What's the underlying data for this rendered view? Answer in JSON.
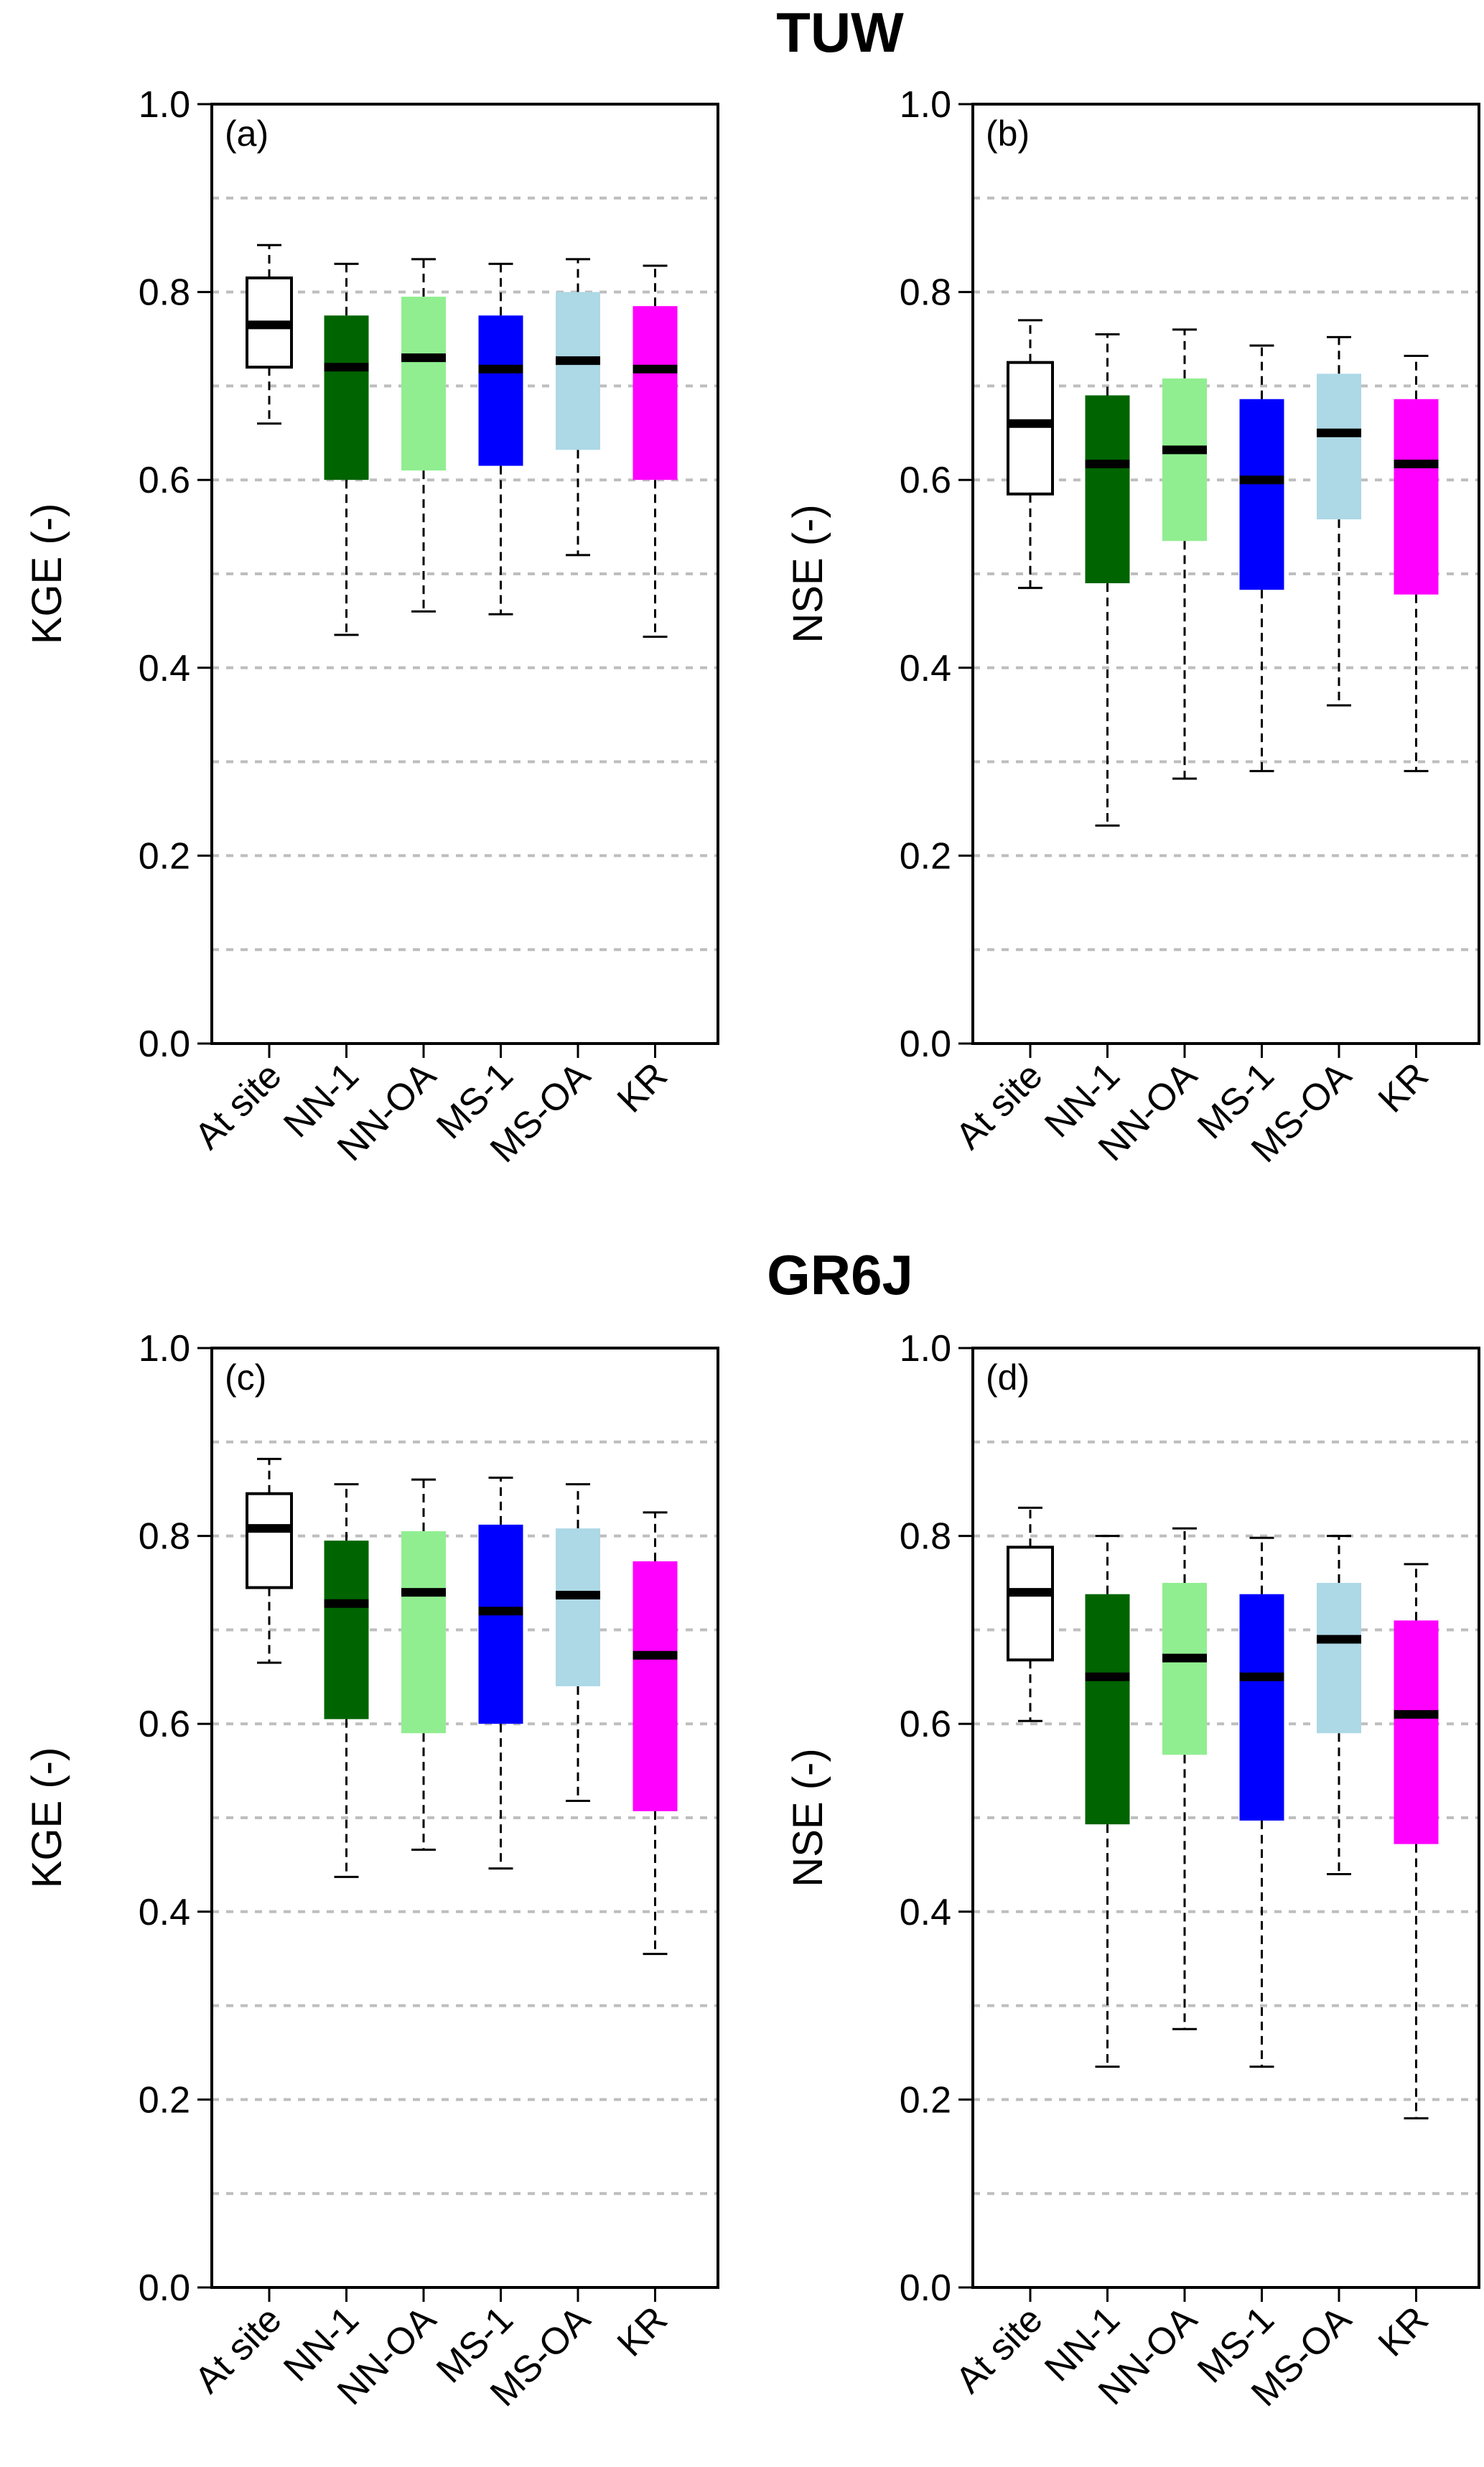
{
  "sections": [
    {
      "title": "TUW"
    },
    {
      "title": "GR6J"
    }
  ],
  "categories": [
    "At site",
    "NN-1",
    "NN-OA",
    "MS-1",
    "MS-OA",
    "KR"
  ],
  "colors": {
    "At site": "#ffffff",
    "NN-1": "#006400",
    "NN-OA": "#90ee90",
    "MS-1": "#0000ff",
    "MS-OA": "#add8e6",
    "KR": "#ff00ff",
    "grid": "#bebebe"
  },
  "chart_data": [
    {
      "type": "box",
      "panel": "(a)",
      "section": "TUW",
      "ylabel": "KGE (-)",
      "ylim": [
        0,
        1
      ],
      "yticks": [
        "0.0",
        "0.2",
        "0.4",
        "0.6",
        "0.8",
        "1.0"
      ],
      "grid": "dashed, every 0.1",
      "boxes": [
        {
          "category": "At site",
          "whisker_low": 0.66,
          "q1": 0.72,
          "median": 0.765,
          "q3": 0.815,
          "whisker_high": 0.85
        },
        {
          "category": "NN-1",
          "whisker_low": 0.435,
          "q1": 0.6,
          "median": 0.72,
          "q3": 0.775,
          "whisker_high": 0.83
        },
        {
          "category": "NN-OA",
          "whisker_low": 0.46,
          "q1": 0.61,
          "median": 0.73,
          "q3": 0.795,
          "whisker_high": 0.835
        },
        {
          "category": "MS-1",
          "whisker_low": 0.457,
          "q1": 0.615,
          "median": 0.718,
          "q3": 0.775,
          "whisker_high": 0.83
        },
        {
          "category": "MS-OA",
          "whisker_low": 0.52,
          "q1": 0.632,
          "median": 0.727,
          "q3": 0.8,
          "whisker_high": 0.835
        },
        {
          "category": "KR",
          "whisker_low": 0.433,
          "q1": 0.6,
          "median": 0.718,
          "q3": 0.785,
          "whisker_high": 0.828
        }
      ]
    },
    {
      "type": "box",
      "panel": "(b)",
      "section": "TUW",
      "ylabel": "NSE (-)",
      "ylim": [
        0,
        1
      ],
      "yticks": [
        "0.0",
        "0.2",
        "0.4",
        "0.6",
        "0.8",
        "1.0"
      ],
      "grid": "dashed, every 0.1",
      "boxes": [
        {
          "category": "At site",
          "whisker_low": 0.485,
          "q1": 0.585,
          "median": 0.66,
          "q3": 0.725,
          "whisker_high": 0.77
        },
        {
          "category": "NN-1",
          "whisker_low": 0.232,
          "q1": 0.49,
          "median": 0.617,
          "q3": 0.69,
          "whisker_high": 0.755
        },
        {
          "category": "NN-OA",
          "whisker_low": 0.282,
          "q1": 0.535,
          "median": 0.632,
          "q3": 0.708,
          "whisker_high": 0.76
        },
        {
          "category": "MS-1",
          "whisker_low": 0.29,
          "q1": 0.483,
          "median": 0.6,
          "q3": 0.686,
          "whisker_high": 0.743
        },
        {
          "category": "MS-OA",
          "whisker_low": 0.36,
          "q1": 0.558,
          "median": 0.65,
          "q3": 0.713,
          "whisker_high": 0.752
        },
        {
          "category": "KR",
          "whisker_low": 0.29,
          "q1": 0.478,
          "median": 0.617,
          "q3": 0.686,
          "whisker_high": 0.732
        }
      ]
    },
    {
      "type": "box",
      "panel": "(c)",
      "section": "GR6J",
      "ylabel": "KGE (-)",
      "ylim": [
        0,
        1
      ],
      "yticks": [
        "0.0",
        "0.2",
        "0.4",
        "0.6",
        "0.8",
        "1.0"
      ],
      "grid": "dashed, every 0.1",
      "boxes": [
        {
          "category": "At site",
          "whisker_low": 0.665,
          "q1": 0.745,
          "median": 0.808,
          "q3": 0.845,
          "whisker_high": 0.882
        },
        {
          "category": "NN-1",
          "whisker_low": 0.437,
          "q1": 0.605,
          "median": 0.728,
          "q3": 0.795,
          "whisker_high": 0.855
        },
        {
          "category": "NN-OA",
          "whisker_low": 0.466,
          "q1": 0.59,
          "median": 0.74,
          "q3": 0.805,
          "whisker_high": 0.86
        },
        {
          "category": "MS-1",
          "whisker_low": 0.446,
          "q1": 0.6,
          "median": 0.72,
          "q3": 0.812,
          "whisker_high": 0.862
        },
        {
          "category": "MS-OA",
          "whisker_low": 0.518,
          "q1": 0.64,
          "median": 0.737,
          "q3": 0.808,
          "whisker_high": 0.855
        },
        {
          "category": "KR",
          "whisker_low": 0.355,
          "q1": 0.507,
          "median": 0.673,
          "q3": 0.773,
          "whisker_high": 0.825
        }
      ]
    },
    {
      "type": "box",
      "panel": "(d)",
      "section": "GR6J",
      "ylabel": "NSE (-)",
      "ylim": [
        0,
        1
      ],
      "yticks": [
        "0.0",
        "0.2",
        "0.4",
        "0.6",
        "0.8",
        "1.0"
      ],
      "grid": "dashed, every 0.1",
      "boxes": [
        {
          "category": "At site",
          "whisker_low": 0.603,
          "q1": 0.668,
          "median": 0.74,
          "q3": 0.788,
          "whisker_high": 0.83
        },
        {
          "category": "NN-1",
          "whisker_low": 0.235,
          "q1": 0.493,
          "median": 0.65,
          "q3": 0.738,
          "whisker_high": 0.8
        },
        {
          "category": "NN-OA",
          "whisker_low": 0.275,
          "q1": 0.567,
          "median": 0.67,
          "q3": 0.75,
          "whisker_high": 0.808
        },
        {
          "category": "MS-1",
          "whisker_low": 0.235,
          "q1": 0.497,
          "median": 0.65,
          "q3": 0.738,
          "whisker_high": 0.798
        },
        {
          "category": "MS-OA",
          "whisker_low": 0.44,
          "q1": 0.59,
          "median": 0.69,
          "q3": 0.75,
          "whisker_high": 0.8
        },
        {
          "category": "KR",
          "whisker_low": 0.18,
          "q1": 0.472,
          "median": 0.61,
          "q3": 0.71,
          "whisker_high": 0.77
        }
      ]
    }
  ]
}
